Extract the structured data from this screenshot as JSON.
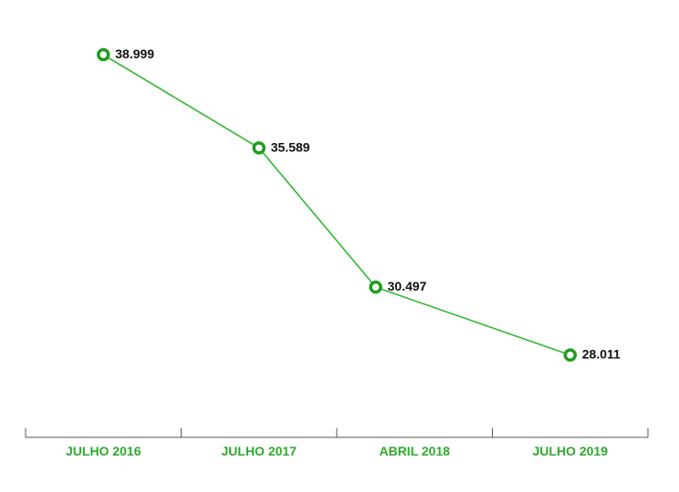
{
  "chart_data": {
    "type": "line",
    "categories": [
      "JULHO 2016",
      "JULHO 2017",
      "ABRIL 2018",
      "JULHO 2019"
    ],
    "series": [
      {
        "values": [
          38999,
          35589,
          30497,
          28011
        ],
        "labels": [
          "38.999",
          "35.589",
          "30.497",
          "28.011"
        ]
      }
    ],
    "x": [
      2016.5,
      2017.5,
      2018.25,
      2019.5
    ],
    "xlim": [
      2016.0,
      2020.0
    ],
    "ylim": [
      25000,
      40000
    ],
    "title": "",
    "xlabel": "",
    "ylabel": "",
    "grid": false,
    "legend": "none",
    "colors": {
      "line": "#2eb82e",
      "marker": "#1f9e1f",
      "tick_label": "#2bab2b",
      "axis": "#555555",
      "data_label": "#111111"
    }
  }
}
